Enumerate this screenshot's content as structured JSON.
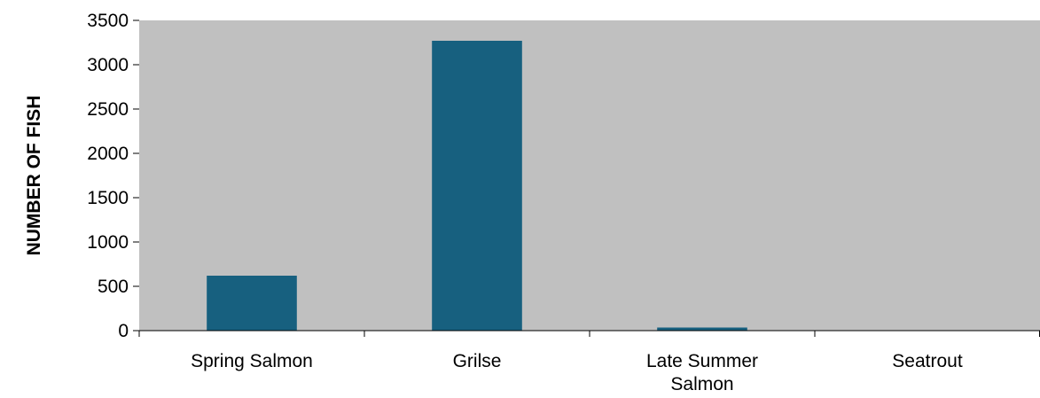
{
  "chart_data": {
    "type": "bar",
    "title": "",
    "xlabel": "",
    "ylabel": "NUMBER OF FISH",
    "categories": [
      "Spring Salmon",
      "Grilse",
      "Late Summer Salmon",
      "Seatrout"
    ],
    "category_label_lines": [
      [
        "Spring Salmon"
      ],
      [
        "Grilse"
      ],
      [
        "Late Summer",
        "Salmon"
      ],
      [
        "Seatrout"
      ]
    ],
    "values": [
      620,
      3270,
      35,
      3
    ],
    "ylim": [
      0,
      3500
    ],
    "yticks": [
      0,
      500,
      1000,
      1500,
      2000,
      2500,
      3000,
      3500
    ],
    "grid": false,
    "legend": "none",
    "colors": {
      "bar": "#17607f",
      "plot_background": "#c0c0c0",
      "axis": "#000000"
    }
  }
}
